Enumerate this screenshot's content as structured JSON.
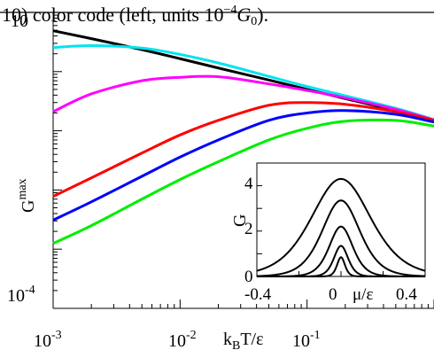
{
  "caption_fragment": "10) color code (left, units 10",
  "caption_exp": "−4",
  "caption_tail": "G",
  "caption_sub": "0",
  "caption_end": ").",
  "chart_data": [
    {
      "type": "line",
      "xscale": "log",
      "yscale": "log",
      "xlim": [
        0.001,
        1
      ],
      "ylim": [
        0.0001,
        10
      ],
      "xlabel": "k_BT/ε",
      "ylabel": "G^max",
      "x_tick_labels": [
        {
          "base": "10",
          "exp": "-3"
        },
        {
          "base": "10",
          "exp": "-2"
        },
        {
          "base": "10",
          "exp": "-1"
        }
      ],
      "y_tick_labels": [
        {
          "base": "10",
          "exp": "-4"
        },
        {
          "base": "10",
          "exp": ""
        }
      ],
      "x": [
        0.001,
        0.002,
        0.005,
        0.01,
        0.02,
        0.05,
        0.1,
        0.2,
        0.5,
        1.0
      ],
      "series": [
        {
          "color": "#000000",
          "values": [
            4.9,
            3.6,
            2.35,
            1.65,
            1.15,
            0.72,
            0.5,
            0.35,
            0.22,
            0.145
          ]
        },
        {
          "color": "#00e5ee",
          "values": [
            2.55,
            2.75,
            2.5,
            1.95,
            1.4,
            0.83,
            0.56,
            0.39,
            0.24,
            0.155
          ]
        },
        {
          "color": "#ff00ff",
          "values": [
            0.21,
            0.42,
            0.7,
            0.8,
            0.82,
            0.62,
            0.48,
            0.36,
            0.23,
            0.152
          ]
        },
        {
          "color": "#ff0000",
          "values": [
            0.0078,
            0.016,
            0.042,
            0.085,
            0.15,
            0.27,
            0.3,
            0.28,
            0.21,
            0.15
          ]
        },
        {
          "color": "#0000ff",
          "values": [
            0.0031,
            0.0063,
            0.017,
            0.036,
            0.07,
            0.15,
            0.2,
            0.22,
            0.19,
            0.14
          ]
        },
        {
          "color": "#00ee00",
          "values": [
            0.00125,
            0.0025,
            0.007,
            0.015,
            0.03,
            0.07,
            0.11,
            0.145,
            0.15,
            0.12
          ]
        }
      ]
    },
    {
      "type": "line",
      "xlim": [
        -0.4,
        0.4
      ],
      "ylim": [
        0,
        5
      ],
      "xlabel": "μ/ε",
      "ylabel": "G",
      "x_ticks": [
        "-0.4",
        "0",
        "0.4"
      ],
      "y_ticks": [
        "0",
        "2",
        "4"
      ],
      "series": [
        {
          "color": "#000000",
          "peak": 4.3,
          "width": 0.19
        },
        {
          "color": "#000000",
          "peak": 3.35,
          "width": 0.12
        },
        {
          "color": "#000000",
          "peak": 2.2,
          "width": 0.075
        },
        {
          "color": "#000000",
          "peak": 1.35,
          "width": 0.045
        },
        {
          "color": "#000000",
          "peak": 0.85,
          "width": 0.025
        }
      ]
    }
  ]
}
